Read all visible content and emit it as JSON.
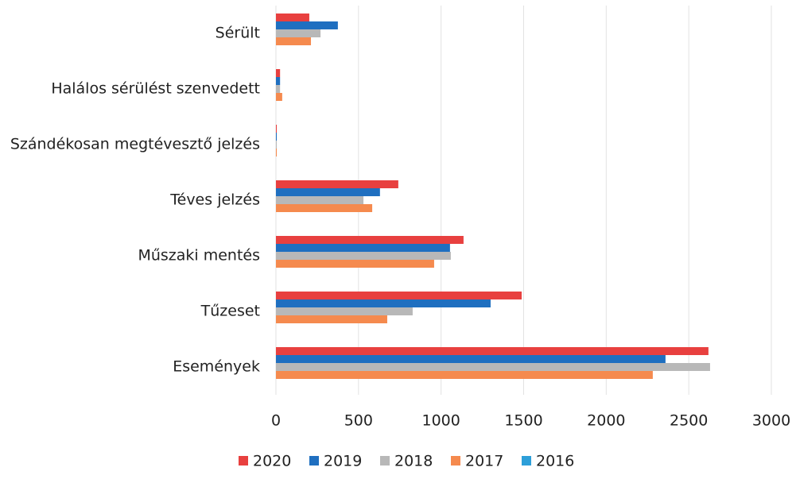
{
  "chart_data": {
    "type": "hbar",
    "categories": [
      "Sérült",
      "Halálos sérülést szenvedett",
      "Szándékosan megtévesztő jelzés",
      "Téves jelzés",
      "Műszaki mentés",
      "Tűzeset",
      "Események"
    ],
    "series": [
      {
        "name": "2020",
        "color": "#e8403f",
        "values": [
          202,
          25,
          5,
          741,
          1136,
          1488,
          2619
        ]
      },
      {
        "name": "2019",
        "color": "#1f6fc0",
        "values": [
          375,
          25,
          5,
          630,
          1054,
          1300,
          2359
        ]
      },
      {
        "name": "2018",
        "color": "#b8b8b8",
        "values": [
          270,
          25,
          5,
          530,
          1059,
          828,
          2629
        ]
      },
      {
        "name": "2017",
        "color": "#f58a4e",
        "values": [
          212,
          38,
          5,
          583,
          958,
          674,
          2282
        ]
      },
      {
        "name": "2016",
        "color": "#2d9fd9",
        "values": [
          0,
          0,
          0,
          0,
          0,
          0,
          0
        ]
      }
    ],
    "xlim": [
      0,
      3000
    ],
    "xticks": [
      0,
      500,
      1000,
      1500,
      2000,
      2500,
      3000
    ],
    "grid": true,
    "legend": "bottom"
  }
}
